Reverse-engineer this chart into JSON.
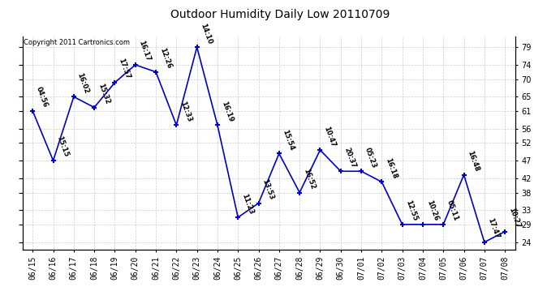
{
  "title": "Outdoor Humidity Daily Low 20110709",
  "copyright": "Copyright 2011 Cartronics.com",
  "line_color": "#0000CC",
  "background_color": "#ffffff",
  "grid_color": "#cccccc",
  "dates": [
    "06/15",
    "06/16",
    "06/17",
    "06/18",
    "06/19",
    "06/20",
    "06/21",
    "06/22",
    "06/23",
    "06/24",
    "06/25",
    "06/26",
    "06/27",
    "06/28",
    "06/29",
    "06/30",
    "07/01",
    "07/02",
    "07/03",
    "07/04",
    "07/05",
    "07/06",
    "07/07",
    "07/08"
  ],
  "values": [
    61,
    47,
    65,
    62,
    69,
    74,
    72,
    57,
    79,
    57,
    31,
    35,
    49,
    38,
    50,
    44,
    44,
    41,
    29,
    29,
    29,
    43,
    24,
    27
  ],
  "times": [
    "04:56",
    "15:15",
    "16:02",
    "15:32",
    "17:57",
    "16:17",
    "12:26",
    "12:33",
    "14:10",
    "16:19",
    "11:23",
    "13:53",
    "15:54",
    "16:52",
    "10:47",
    "20:37",
    "05:23",
    "16:18",
    "12:55",
    "10:26",
    "05:11",
    "16:48",
    "17:47",
    "10:27"
  ],
  "yticks": [
    24,
    29,
    33,
    38,
    42,
    47,
    52,
    56,
    61,
    65,
    70,
    74,
    79
  ],
  "ylim": [
    22,
    82
  ],
  "title_fontsize": 10,
  "label_fontsize": 7,
  "time_fontsize": 6,
  "copyright_fontsize": 6
}
